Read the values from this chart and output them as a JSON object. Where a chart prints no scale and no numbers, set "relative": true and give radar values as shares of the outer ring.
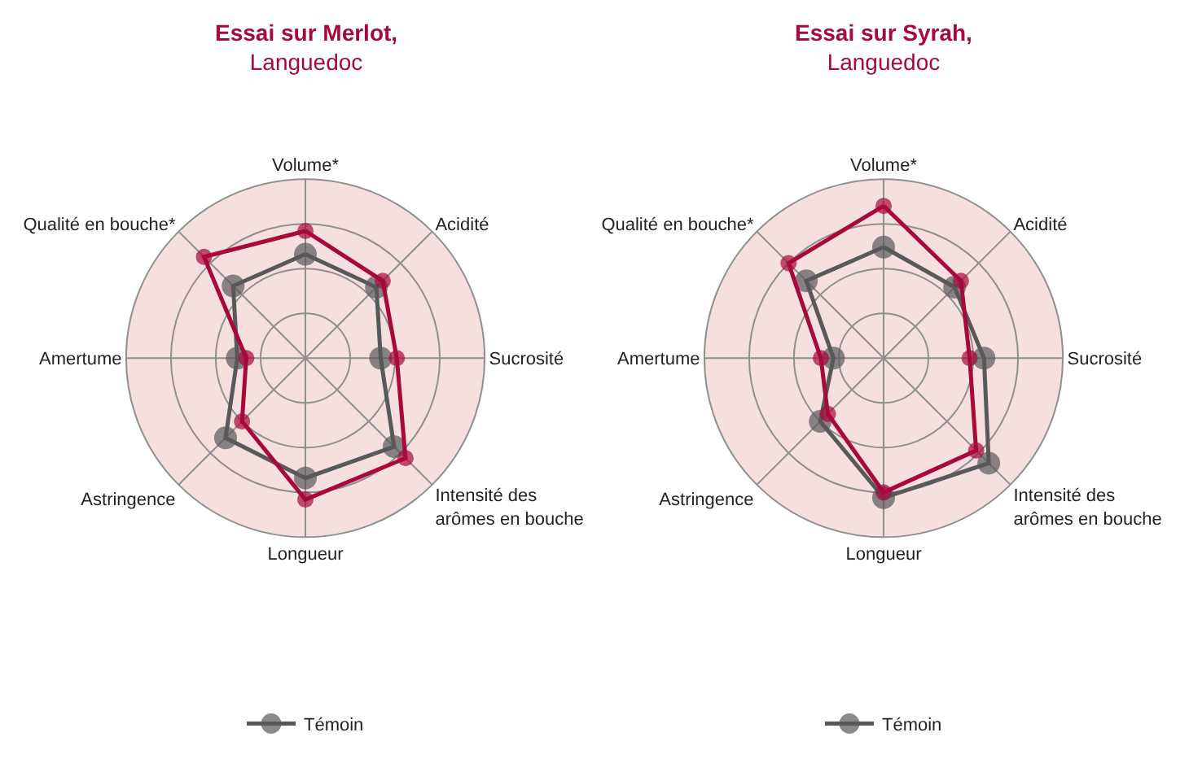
{
  "chart_data": [
    {
      "type": "radar",
      "title": "Essai sur Merlot,",
      "subtitle": "Languedoc",
      "relative": true,
      "grid": true,
      "legend": "bottom",
      "marker": "circle",
      "line_style": "solid",
      "categories": [
        "Volume*",
        "Acidité",
        "Sucrosité",
        "Intensité des arômes en bouche",
        "Longueur",
        "Astringence",
        "Amertume",
        "Qualité en bouche*"
      ],
      "series": [
        {
          "name": "Témoin",
          "color": "#58595b",
          "values": [
            0.58,
            0.56,
            0.42,
            0.7,
            0.67,
            0.63,
            0.38,
            0.57
          ]
        },
        {
          "color": "#a8083c",
          "values": [
            0.71,
            0.61,
            0.51,
            0.79,
            0.79,
            0.5,
            0.33,
            0.8
          ]
        }
      ]
    },
    {
      "type": "radar",
      "title": "Essai sur Syrah,",
      "subtitle": "Languedoc",
      "relative": true,
      "grid": true,
      "legend": "bottom",
      "marker": "circle",
      "line_style": "solid",
      "categories": [
        "Volume*",
        "Acidité",
        "Sucrosité",
        "Intensité des arômes en bouche",
        "Longueur",
        "Astringence",
        "Amertume",
        "Qualité en bouche*"
      ],
      "series": [
        {
          "name": "Témoin",
          "color": "#58595b",
          "values": [
            0.62,
            0.56,
            0.56,
            0.83,
            0.78,
            0.5,
            0.28,
            0.61
          ]
        },
        {
          "color": "#a8083c",
          "values": [
            0.85,
            0.61,
            0.48,
            0.73,
            0.75,
            0.44,
            0.35,
            0.75
          ]
        }
      ]
    }
  ]
}
